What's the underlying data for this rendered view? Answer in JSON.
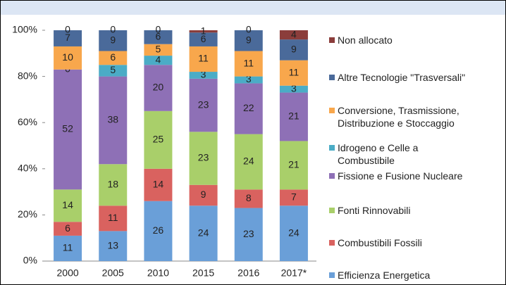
{
  "chart_data": {
    "type": "stacked_bar",
    "categories": [
      "2000",
      "2005",
      "2010",
      "2015",
      "2016",
      "2017*"
    ],
    "series": [
      {
        "name": "Efficienza Energetica",
        "color": "#6a9fd8",
        "values": [
          11,
          13,
          26,
          24,
          23,
          24
        ]
      },
      {
        "name": "Combustibili Fossili",
        "color": "#d9625f",
        "values": [
          6,
          11,
          14,
          9,
          8,
          7
        ]
      },
      {
        "name": "Fonti Rinnovabili",
        "color": "#a9cf6a",
        "values": [
          14,
          18,
          25,
          23,
          24,
          21
        ]
      },
      {
        "name": "Fissione e Fusione Nucleare",
        "color": "#8e70b6",
        "values": [
          52,
          38,
          20,
          23,
          22,
          21
        ]
      },
      {
        "name": "Idrogeno e Celle a\nCombustibile",
        "color": "#4bacc6",
        "values": [
          0,
          5,
          4,
          3,
          3,
          3
        ]
      },
      {
        "name": "Conversione, Trasmissione,\nDistribuzione e Stoccaggio",
        "color": "#f8a74c",
        "values": [
          10,
          6,
          5,
          11,
          11,
          11
        ]
      },
      {
        "name": "Altre Tecnologie \"Trasversali\"",
        "color": "#4a6a9a",
        "values": [
          7,
          9,
          6,
          6,
          9,
          9
        ]
      },
      {
        "name": "Non allocato",
        "color": "#8b3d3b",
        "values": [
          0,
          0,
          0,
          1,
          0,
          4
        ]
      }
    ],
    "ylim": [
      0,
      100
    ],
    "yticks": [
      {
        "value": 0,
        "label": "0%"
      },
      {
        "value": 20,
        "label": "20%"
      },
      {
        "value": 40,
        "label": "40%"
      },
      {
        "value": 60,
        "label": "60%"
      },
      {
        "value": 80,
        "label": "80%"
      },
      {
        "value": 100,
        "label": "100%"
      }
    ]
  }
}
